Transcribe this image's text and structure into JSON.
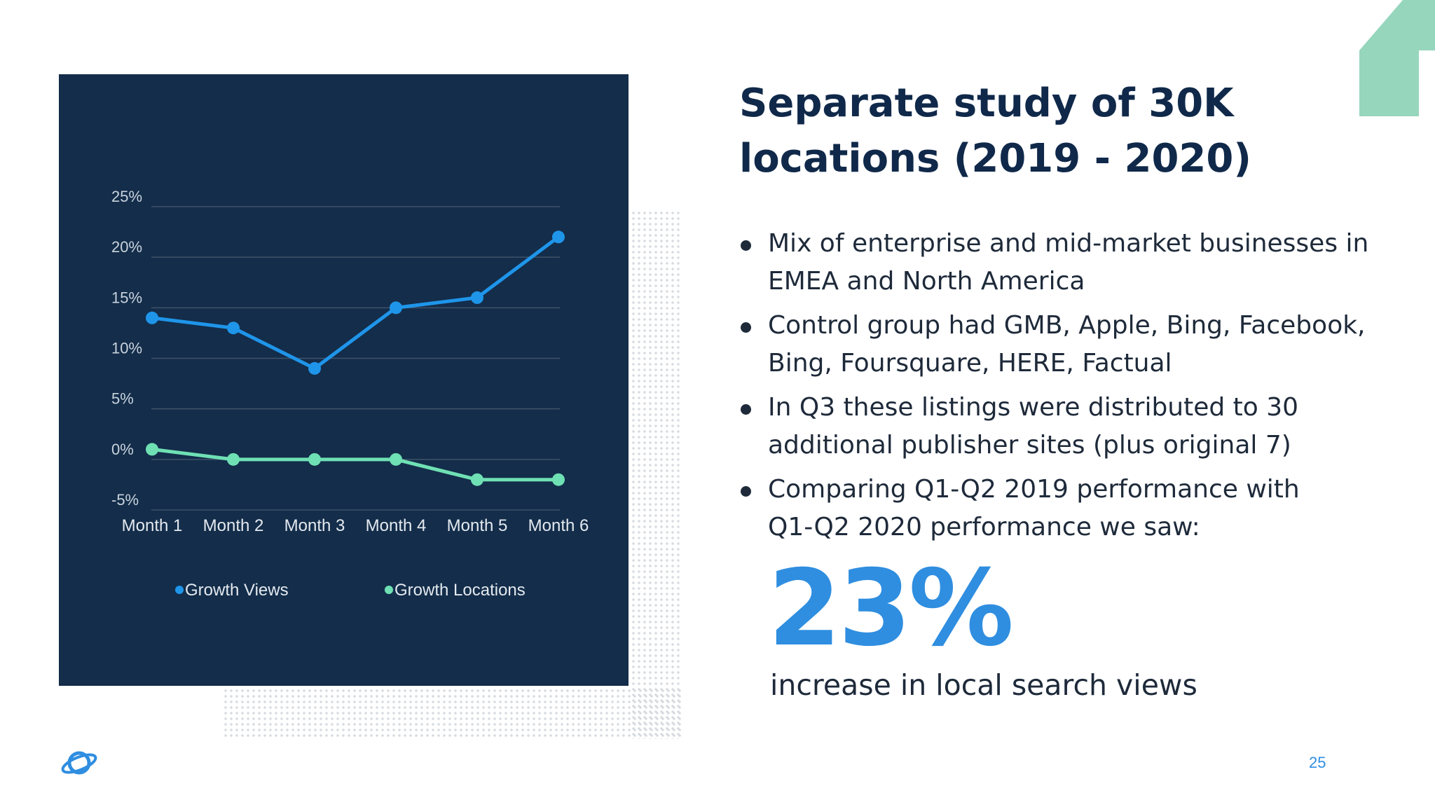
{
  "slide": {
    "title_lines": [
      "Separate study of 30K",
      "locations (2019 - 2020)"
    ],
    "bullets": [
      [
        "Mix of enterprise and mid-market businesses in",
        "EMEA and North America"
      ],
      [
        "Control group had GMB, Apple, Bing, Facebook,",
        "Bing, Foursquare, HERE, Factual"
      ],
      [
        "In Q3 these listings were distributed to 30",
        "additional publisher sites (plus original 7)"
      ],
      [
        "Comparing Q1-Q2 2019 performance with",
        "Q1-Q2 2020 performance we saw:"
      ]
    ],
    "highlight_value": "23%",
    "highlight_caption": "increase in local search views",
    "page_number": "25"
  },
  "colors": {
    "panel_bg": "#132d4a",
    "title": "#10294a",
    "accent_blue": "#2f8ee0",
    "views_series": "#1f95ea",
    "locations_series": "#6fe0b4",
    "arrow": "#96d6bd"
  },
  "icons": {
    "logo": "planet-logo-icon",
    "corner": "corner-arrow-icon"
  },
  "chart_data": {
    "type": "line",
    "title": "",
    "xlabel": "",
    "ylabel": "",
    "categories": [
      "Month 1",
      "Month 2",
      "Month 3",
      "Month 4",
      "Month 5",
      "Month 6"
    ],
    "y_ticks": [
      "25%",
      "20%",
      "15%",
      "10%",
      "5%",
      "0%",
      "-5%"
    ],
    "ylim": [
      -5,
      25
    ],
    "grid": true,
    "legend": "bottom",
    "series": [
      {
        "name": "Growth Views",
        "values": [
          14,
          13,
          9,
          15,
          16,
          22
        ],
        "color": "#1f95ea"
      },
      {
        "name": "Growth Locations",
        "values": [
          1,
          0,
          0,
          0,
          -2,
          -2
        ],
        "color": "#6fe0b4"
      }
    ]
  }
}
